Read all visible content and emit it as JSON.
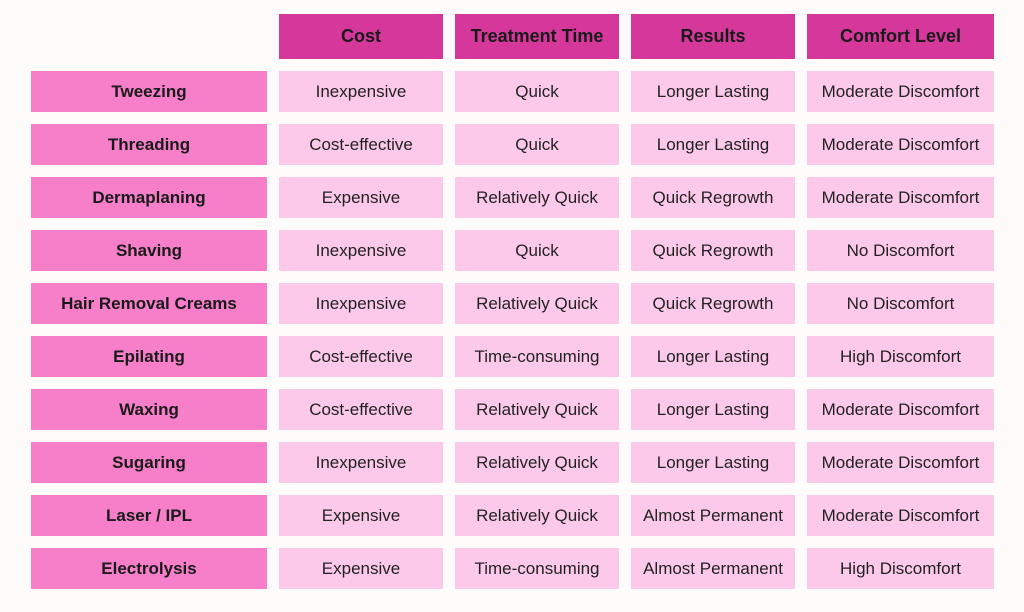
{
  "columns": [
    "Cost",
    "Treatment Time",
    "Results",
    "Comfort Level"
  ],
  "rows": [
    {
      "method": "Tweezing",
      "cells": [
        "Inexpensive",
        "Quick",
        "Longer Lasting",
        "Moderate Discomfort"
      ]
    },
    {
      "method": "Threading",
      "cells": [
        "Cost-effective",
        "Quick",
        "Longer Lasting",
        "Moderate Discomfort"
      ]
    },
    {
      "method": "Dermaplaning",
      "cells": [
        "Expensive",
        "Relatively Quick",
        "Quick Regrowth",
        "Moderate Discomfort"
      ]
    },
    {
      "method": "Shaving",
      "cells": [
        "Inexpensive",
        "Quick",
        "Quick Regrowth",
        "No Discomfort"
      ]
    },
    {
      "method": "Hair Removal Creams",
      "cells": [
        "Inexpensive",
        "Relatively Quick",
        "Quick Regrowth",
        "No Discomfort"
      ]
    },
    {
      "method": "Epilating",
      "cells": [
        "Cost-effective",
        "Time-consuming",
        "Longer Lasting",
        "High Discomfort"
      ]
    },
    {
      "method": "Waxing",
      "cells": [
        "Cost-effective",
        "Relatively Quick",
        "Longer Lasting",
        "Moderate Discomfort"
      ]
    },
    {
      "method": "Sugaring",
      "cells": [
        "Inexpensive",
        "Relatively Quick",
        "Longer Lasting",
        "Moderate Discomfort"
      ]
    },
    {
      "method": "Laser / IPL",
      "cells": [
        "Expensive",
        "Relatively Quick",
        "Almost Permanent",
        "Moderate Discomfort"
      ]
    },
    {
      "method": "Electrolysis",
      "cells": [
        "Expensive",
        "Time-consuming",
        "Almost Permanent",
        "High Discomfort"
      ]
    }
  ],
  "colors": {
    "column_header": "#d6379a",
    "row_header": "#f77fc9",
    "data_cell": "#fdc9ea",
    "background": "#fdfcfb"
  }
}
